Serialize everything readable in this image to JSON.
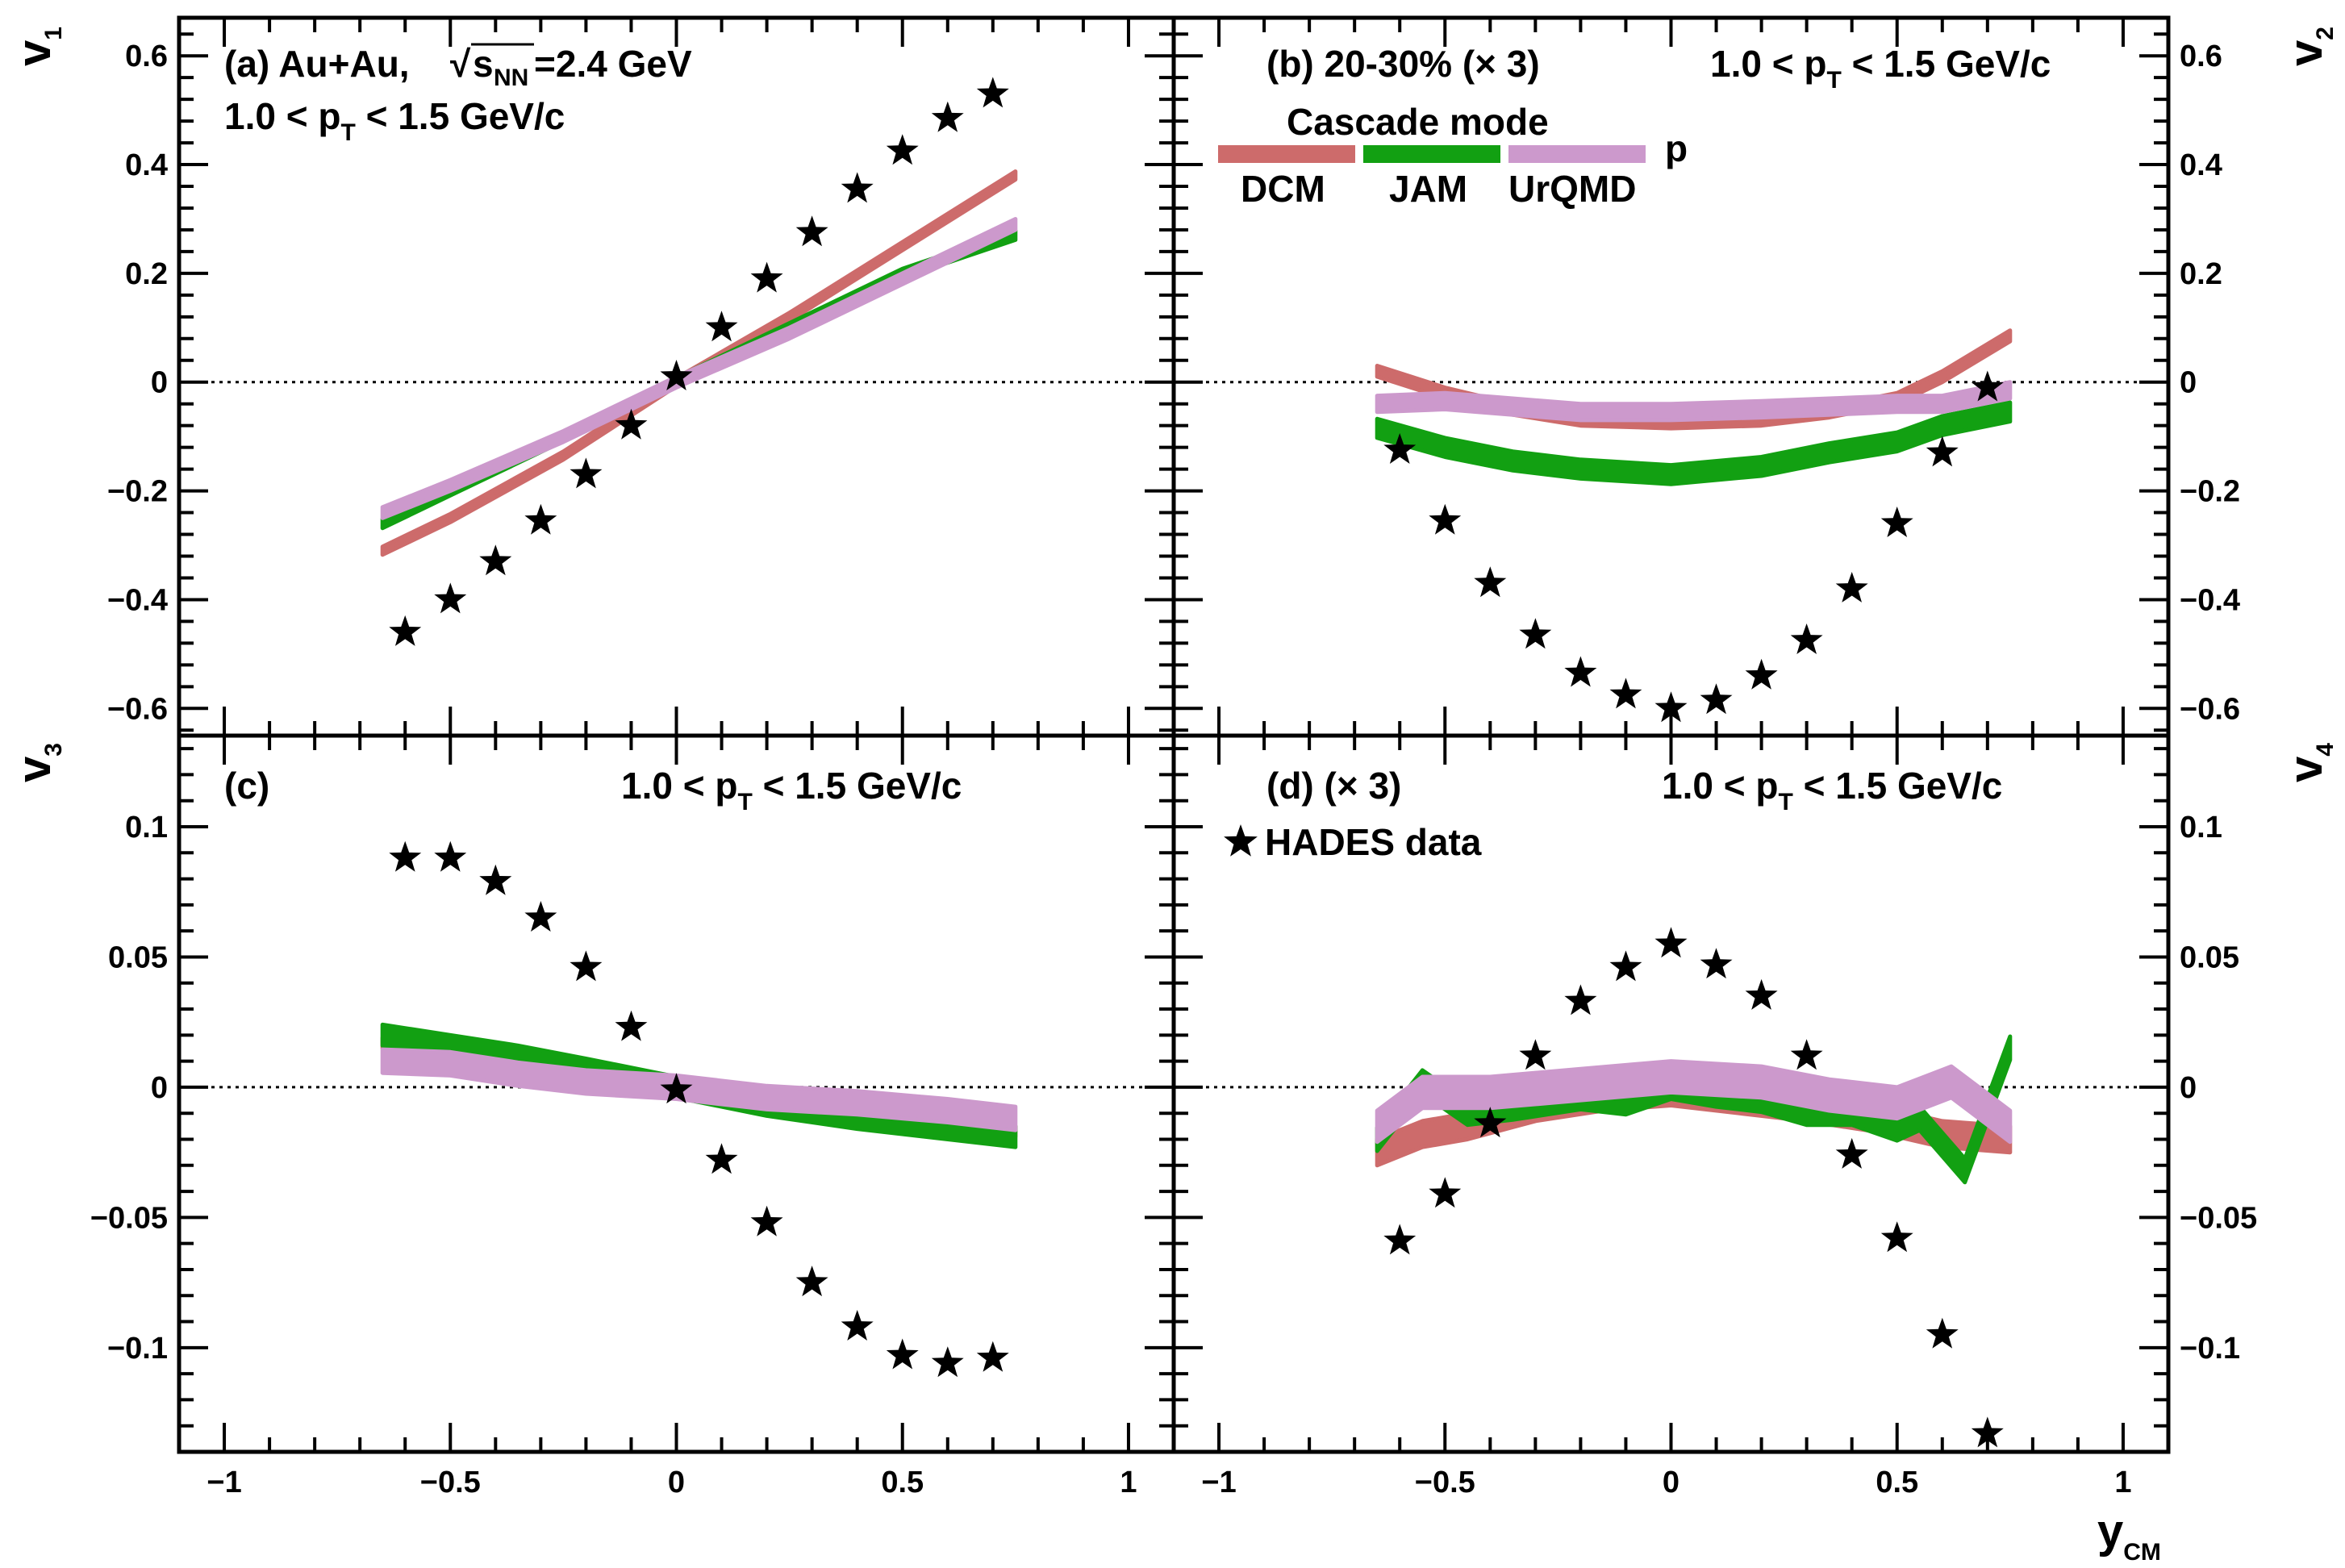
{
  "colors": {
    "dcm": "#cd6b6b",
    "jam": "#12a012",
    "urqmd": "#cc99cc",
    "data": "#000000"
  },
  "x_axis": {
    "label": "y",
    "label_sub": "CM",
    "ticks": [
      "−1",
      "−0.5",
      "0",
      "0.5",
      "1"
    ],
    "tick_values": [
      -1,
      -0.5,
      0,
      0.5,
      1
    ]
  },
  "legend": {
    "title": "Cascade mode",
    "species": "p",
    "entries": [
      "DCM",
      "JAM",
      "UrQMD"
    ],
    "data_label": "HADES data"
  },
  "chart_data": [
    {
      "type": "line",
      "panel": "a",
      "ylabel": "v",
      "ylabel_sub": "1",
      "ylim": [
        -0.65,
        0.67
      ],
      "xlim": [
        -1.1,
        1.1
      ],
      "yticks": [
        "−0.6",
        "−0.4",
        "−0.2",
        "0",
        "0.2",
        "0.4",
        "0.6"
      ],
      "ytick_values": [
        -0.6,
        -0.4,
        -0.2,
        0,
        0.2,
        0.4,
        0.6
      ],
      "text": {
        "line1_a": "(a) Au+Au,",
        "line1_sqrt": "s",
        "line1_sub": "NN",
        "line1_b": "=2.4 GeV",
        "pt_a": "1.0 < p",
        "pt_sub": "T",
        "pt_b": " < 1.5 GeV/c"
      },
      "series": [
        {
          "name": "DCM",
          "x": [
            -0.65,
            -0.5,
            -0.25,
            0,
            0.25,
            0.5,
            0.75
          ],
          "y": [
            -0.31,
            -0.25,
            -0.135,
            0,
            0.12,
            0.25,
            0.38
          ],
          "width": 0.015
        },
        {
          "name": "JAM",
          "x": [
            -0.65,
            -0.5,
            -0.25,
            0,
            0.25,
            0.5,
            0.75
          ],
          "y": [
            -0.26,
            -0.2,
            -0.1,
            0,
            0.1,
            0.2,
            0.27
          ],
          "width": 0.017
        },
        {
          "name": "UrQMD",
          "x": [
            -0.65,
            -0.5,
            -0.25,
            0,
            0.25,
            0.5,
            0.75
          ],
          "y": [
            -0.24,
            -0.19,
            -0.1,
            0,
            0.09,
            0.19,
            0.29
          ],
          "width": 0.02
        },
        {
          "name": "HADES data",
          "x": [
            -0.6,
            -0.5,
            -0.4,
            -0.3,
            -0.2,
            -0.1,
            0,
            0.1,
            0.2,
            0.3,
            0.4,
            0.5,
            0.6,
            0.7
          ],
          "y": [
            -0.46,
            -0.4,
            -0.33,
            -0.255,
            -0.17,
            -0.08,
            0.01,
            0.1,
            0.19,
            0.275,
            0.355,
            0.425,
            0.485,
            0.53
          ]
        }
      ]
    },
    {
      "type": "line",
      "panel": "b",
      "ylabel": "v",
      "ylabel_sub": "2",
      "ylim": [
        -0.65,
        0.67
      ],
      "xlim": [
        -1.1,
        1.1
      ],
      "yticks": [
        "−0.6",
        "−0.4",
        "−0.2",
        "0",
        "0.2",
        "0.4",
        "0.6"
      ],
      "ytick_values": [
        -0.6,
        -0.4,
        -0.2,
        0,
        0.2,
        0.4,
        0.6
      ],
      "text": {
        "title": "(b)  20-30% (× 3)",
        "pt_a": "1.0 < p",
        "pt_sub": "T",
        "pt_b": " < 1.5 GeV/c"
      },
      "series": [
        {
          "name": "DCM",
          "x": [
            -0.65,
            -0.5,
            -0.35,
            -0.2,
            0,
            0.2,
            0.35,
            0.5,
            0.6,
            0.75
          ],
          "y": [
            0.02,
            -0.02,
            -0.05,
            -0.07,
            -0.075,
            -0.07,
            -0.055,
            -0.03,
            0.01,
            0.085
          ],
          "width": 0.02
        },
        {
          "name": "JAM",
          "x": [
            -0.65,
            -0.5,
            -0.35,
            -0.2,
            0,
            0.2,
            0.35,
            0.5,
            0.6,
            0.75
          ],
          "y": [
            -0.085,
            -0.12,
            -0.145,
            -0.16,
            -0.17,
            -0.155,
            -0.13,
            -0.11,
            -0.08,
            -0.055
          ],
          "width": 0.035
        },
        {
          "name": "UrQMD",
          "x": [
            -0.65,
            -0.5,
            -0.35,
            -0.2,
            0,
            0.2,
            0.35,
            0.5,
            0.6,
            0.75
          ],
          "y": [
            -0.04,
            -0.035,
            -0.045,
            -0.055,
            -0.055,
            -0.05,
            -0.045,
            -0.04,
            -0.04,
            -0.015
          ],
          "width": 0.03
        },
        {
          "name": "HADES data",
          "x": [
            -0.6,
            -0.5,
            -0.4,
            -0.3,
            -0.2,
            -0.1,
            0,
            0.1,
            0.2,
            0.3,
            0.4,
            0.5,
            0.6,
            0.7
          ],
          "y": [
            -0.125,
            -0.255,
            -0.37,
            -0.465,
            -0.535,
            -0.575,
            -0.6,
            -0.585,
            -0.54,
            -0.475,
            -0.38,
            -0.26,
            -0.13,
            -0.01
          ]
        }
      ]
    },
    {
      "type": "line",
      "panel": "c",
      "ylabel": "v",
      "ylabel_sub": "3",
      "ylim": [
        -0.14,
        0.135
      ],
      "xlim": [
        -1.1,
        1.1
      ],
      "yticks": [
        "−0.1",
        "−0.05",
        "0",
        "0.05",
        "0.1"
      ],
      "ytick_values": [
        -0.1,
        -0.05,
        0,
        0.05,
        0.1
      ],
      "text": {
        "title": "(c)",
        "pt_a": "1.0 < p",
        "pt_sub": "T",
        "pt_b": " < 1.5 GeV/c"
      },
      "series": [
        {
          "name": "DCM",
          "x": [
            -0.65,
            -0.5,
            -0.35,
            -0.2,
            0,
            0.2,
            0.4,
            0.6,
            0.75
          ],
          "y": [
            0.017,
            0.014,
            0.011,
            0.006,
            0,
            -0.006,
            -0.01,
            -0.014,
            -0.017
          ],
          "width": 0.004
        },
        {
          "name": "JAM",
          "x": [
            -0.65,
            -0.5,
            -0.35,
            -0.2,
            0,
            0.2,
            0.4,
            0.6,
            0.75
          ],
          "y": [
            0.02,
            0.016,
            0.012,
            0.007,
            0,
            -0.007,
            -0.012,
            -0.016,
            -0.019
          ],
          "width": 0.008
        },
        {
          "name": "UrQMD",
          "x": [
            -0.65,
            -0.5,
            -0.35,
            -0.2,
            0,
            0.2,
            0.4,
            0.6,
            0.75
          ],
          "y": [
            0.01,
            0.009,
            0.005,
            0.002,
            0,
            -0.004,
            -0.006,
            -0.009,
            -0.012
          ],
          "width": 0.009
        },
        {
          "name": "HADES data",
          "x": [
            -0.6,
            -0.5,
            -0.4,
            -0.3,
            -0.2,
            -0.1,
            0,
            0.1,
            0.2,
            0.3,
            0.4,
            0.5,
            0.6,
            0.7
          ],
          "y": [
            0.088,
            0.088,
            0.079,
            0.065,
            0.046,
            0.023,
            -0.001,
            -0.028,
            -0.052,
            -0.075,
            -0.092,
            -0.103,
            -0.106,
            -0.104
          ]
        }
      ]
    },
    {
      "type": "line",
      "panel": "d",
      "ylabel": "v",
      "ylabel_sub": "4",
      "ylim": [
        -0.14,
        0.135
      ],
      "xlim": [
        -1.1,
        1.1
      ],
      "yticks": [
        "−0.1",
        "−0.05",
        "0",
        "0.05",
        "0.1"
      ],
      "ytick_values": [
        -0.1,
        -0.05,
        0,
        0.05,
        0.1
      ],
      "text": {
        "title": "(d)  (× 3)",
        "pt_a": "1.0 < p",
        "pt_sub": "T",
        "pt_b": " < 1.5 GeV/c"
      },
      "series": [
        {
          "name": "DCM",
          "x": [
            -0.65,
            -0.55,
            -0.45,
            -0.3,
            -0.15,
            0,
            0.15,
            0.3,
            0.45,
            0.6,
            0.75
          ],
          "y": [
            -0.025,
            -0.018,
            -0.015,
            -0.008,
            -0.004,
            -0.002,
            -0.005,
            -0.008,
            -0.012,
            -0.018,
            -0.02
          ],
          "width": 0.01
        },
        {
          "name": "JAM",
          "x": [
            -0.65,
            -0.55,
            -0.45,
            -0.35,
            -0.2,
            -0.1,
            0,
            0.1,
            0.2,
            0.3,
            0.4,
            0.5,
            0.55,
            0.65,
            0.75
          ],
          "y": [
            -0.02,
            0.002,
            -0.01,
            -0.008,
            -0.004,
            -0.006,
            0,
            -0.003,
            -0.005,
            -0.01,
            -0.01,
            -0.016,
            -0.012,
            -0.032,
            0.015
          ],
          "width": 0.009
        },
        {
          "name": "UrQMD",
          "x": [
            -0.65,
            -0.55,
            -0.4,
            -0.2,
            0,
            0.2,
            0.35,
            0.5,
            0.62,
            0.75
          ],
          "y": [
            -0.015,
            -0.002,
            -0.002,
            0.001,
            0.004,
            0.002,
            -0.003,
            -0.006,
            0.002,
            -0.015
          ],
          "width": 0.012
        },
        {
          "name": "HADES data",
          "x": [
            -0.6,
            -0.5,
            -0.4,
            -0.3,
            -0.2,
            -0.1,
            0,
            0.1,
            0.2,
            0.3,
            0.4,
            0.5,
            0.6,
            0.7
          ],
          "y": [
            -0.059,
            -0.041,
            -0.014,
            0.012,
            0.033,
            0.046,
            0.055,
            0.047,
            0.035,
            0.012,
            -0.026,
            -0.058,
            -0.095,
            -0.133
          ]
        }
      ]
    }
  ]
}
